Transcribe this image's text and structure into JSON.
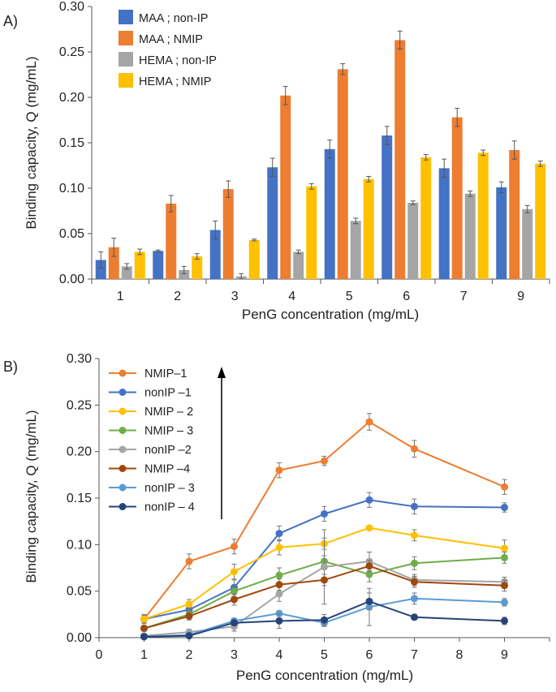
{
  "chart_data": [
    {
      "panel_label": "A)",
      "type": "bar",
      "xlabel": "PenG concentration (mg/mL)",
      "ylabel": "Binding capacity,  Q (mg/mL)",
      "ylim": [
        0,
        0.3
      ],
      "yticks": [
        "0.00",
        "0.05",
        "0.10",
        "0.15",
        "0.20",
        "0.25",
        "0.30"
      ],
      "categories": [
        "1",
        "2",
        "3",
        "4",
        "5",
        "6",
        "7",
        "9"
      ],
      "legend_position": "top-left",
      "grid": false,
      "series": [
        {
          "name": "MAA ; non-IP",
          "color": "#4472C4",
          "values": [
            0.021,
            0.031,
            0.054,
            0.123,
            0.143,
            0.158,
            0.122,
            0.101
          ],
          "errors": [
            0.009,
            0.001,
            0.01,
            0.01,
            0.01,
            0.01,
            0.01,
            0.006
          ]
        },
        {
          "name": "MAA ; NMIP",
          "color": "#ED7D31",
          "values": [
            0.035,
            0.083,
            0.099,
            0.202,
            0.231,
            0.263,
            0.178,
            0.142
          ],
          "errors": [
            0.01,
            0.009,
            0.009,
            0.01,
            0.006,
            0.01,
            0.01,
            0.01
          ]
        },
        {
          "name": "HEMA ; non-IP",
          "color": "#A5A5A5",
          "values": [
            0.014,
            0.01,
            0.003,
            0.03,
            0.064,
            0.084,
            0.094,
            0.077
          ],
          "errors": [
            0.003,
            0.004,
            0.003,
            0.002,
            0.003,
            0.002,
            0.003,
            0.004
          ]
        },
        {
          "name": "HEMA ; NMIP",
          "color": "#FFC000",
          "values": [
            0.03,
            0.025,
            0.043,
            0.102,
            0.11,
            0.134,
            0.139,
            0.127
          ],
          "errors": [
            0.003,
            0.003,
            0.001,
            0.003,
            0.003,
            0.003,
            0.003,
            0.003
          ]
        }
      ]
    },
    {
      "panel_label": "B)",
      "type": "line",
      "xlabel": "PenG concentration (mg/mL)",
      "ylabel": "Binding capacity,  Q (mg/mL)",
      "xlim": [
        0,
        10
      ],
      "ylim": [
        0,
        0.3
      ],
      "xticks": [
        "0",
        "1",
        "2",
        "3",
        "4",
        "5",
        "6",
        "7",
        "8",
        "9"
      ],
      "yticks": [
        "0.00",
        "0.05",
        "0.10",
        "0.15",
        "0.20",
        "0.25",
        "0.30"
      ],
      "x": [
        1,
        2,
        3,
        4,
        5,
        6,
        7,
        9
      ],
      "legend_position": "top-left",
      "legend_arrow": true,
      "grid": false,
      "series": [
        {
          "name": "NMIP–1",
          "color": "#ED7D31",
          "values": [
            0.02,
            0.082,
            0.098,
            0.18,
            0.19,
            0.232,
            0.203,
            0.162
          ],
          "errors": [
            0.005,
            0.008,
            0.008,
            0.008,
            0.005,
            0.009,
            0.009,
            0.008
          ]
        },
        {
          "name": "nonIP –1",
          "color": "#4472C4",
          "values": [
            0.02,
            0.03,
            0.054,
            0.112,
            0.133,
            0.148,
            0.141,
            0.14
          ],
          "errors": [
            0.004,
            0.005,
            0.008,
            0.008,
            0.008,
            0.008,
            0.008,
            0.005
          ]
        },
        {
          "name": "NMIP – 2",
          "color": "#FFC000",
          "values": [
            0.02,
            0.036,
            0.071,
            0.097,
            0.101,
            0.118,
            0.11,
            0.096
          ],
          "errors": [
            0.004,
            0.005,
            0.008,
            0.008,
            0.006,
            0.002,
            0.006,
            0.009
          ]
        },
        {
          "name": "NMIP – 3",
          "color": "#70AD47",
          "values": [
            0.01,
            0.025,
            0.05,
            0.067,
            0.082,
            0.068,
            0.08,
            0.086
          ],
          "errors": [
            0.003,
            0.004,
            0.006,
            0.008,
            0.006,
            0.008,
            0.007,
            0.006
          ]
        },
        {
          "name": "nonIP –2",
          "color": "#A5A5A5",
          "values": [
            0.002,
            0.006,
            0.012,
            0.047,
            0.076,
            0.082,
            0.062,
            0.06
          ],
          "errors": [
            0.002,
            0.003,
            0.005,
            0.008,
            0.04,
            0.01,
            0.006,
            0.005
          ]
        },
        {
          "name": "NMIP –4",
          "color": "#9E480E",
          "values": [
            0.01,
            0.023,
            0.041,
            0.057,
            0.062,
            0.077,
            0.06,
            0.056
          ],
          "errors": [
            0.003,
            0.004,
            0.006,
            0.006,
            0.006,
            0.006,
            0.006,
            0.006
          ]
        },
        {
          "name": "nonIP – 3",
          "color": "#5B9BD5",
          "values": [
            0.001,
            0.003,
            0.018,
            0.026,
            0.016,
            0.033,
            0.042,
            0.038
          ],
          "errors": [
            0.001,
            0.002,
            0.003,
            0.003,
            0.004,
            0.02,
            0.006,
            0.004
          ]
        },
        {
          "name": "nonIP – 4",
          "color": "#264478",
          "values": [
            0.001,
            0.002,
            0.016,
            0.018,
            0.019,
            0.039,
            0.022,
            0.018
          ],
          "errors": [
            0.001,
            0.001,
            0.003,
            0.008,
            0.006,
            0.009,
            0.003,
            0.004
          ]
        }
      ]
    }
  ]
}
